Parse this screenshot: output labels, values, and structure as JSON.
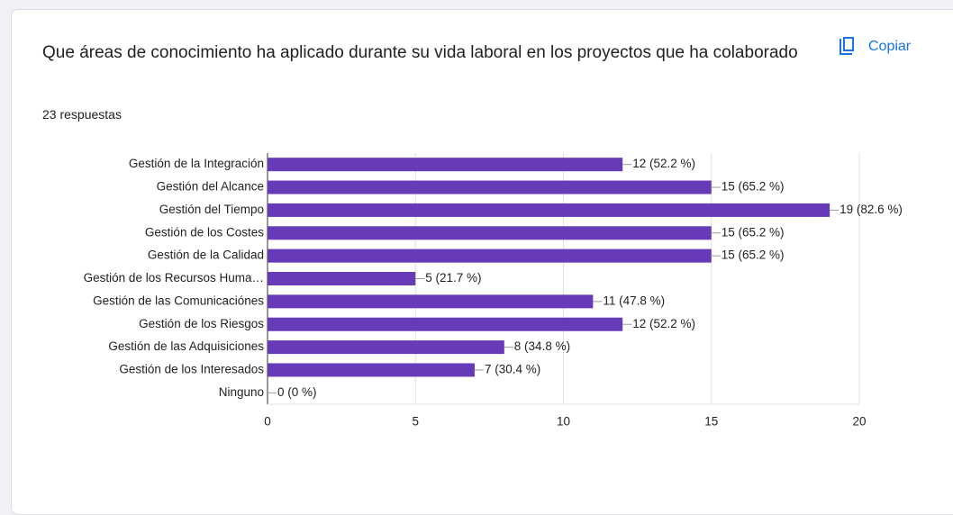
{
  "copy_button": "Copiar",
  "chart_data": {
    "type": "bar",
    "orientation": "horizontal",
    "title": "Que áreas de conocimiento ha aplicado durante su vida laboral en los proyectos que ha colaborado",
    "subtitle": "23 respuestas",
    "categories": [
      "Gestión de la Integración",
      "Gestión del Alcance",
      "Gestión del Tiempo",
      "Gestión de los Costes",
      "Gestión de la Calidad",
      "Gestión de los Recursos Huma…",
      "Gestión de las Comunicaciónes",
      "Gestión de los Riesgos",
      "Gestión de las Adquisiciones",
      "Gestión de los Interesados",
      "Ninguno"
    ],
    "values": [
      12,
      15,
      19,
      15,
      15,
      5,
      11,
      12,
      8,
      7,
      0
    ],
    "value_labels": [
      "12 (52.2 %)",
      "15 (65.2 %)",
      "19 (82.6 %)",
      "15 (65.2 %)",
      "15 (65.2 %)",
      "5 (21.7 %)",
      "11 (47.8 %)",
      "12 (52.2 %)",
      "8 (34.8 %)",
      "7 (30.4 %)",
      "0 (0 %)"
    ],
    "color": "#673ab7",
    "xlim": [
      0,
      20
    ],
    "xticks": [
      0,
      5,
      10,
      15,
      20
    ],
    "grid": true
  }
}
